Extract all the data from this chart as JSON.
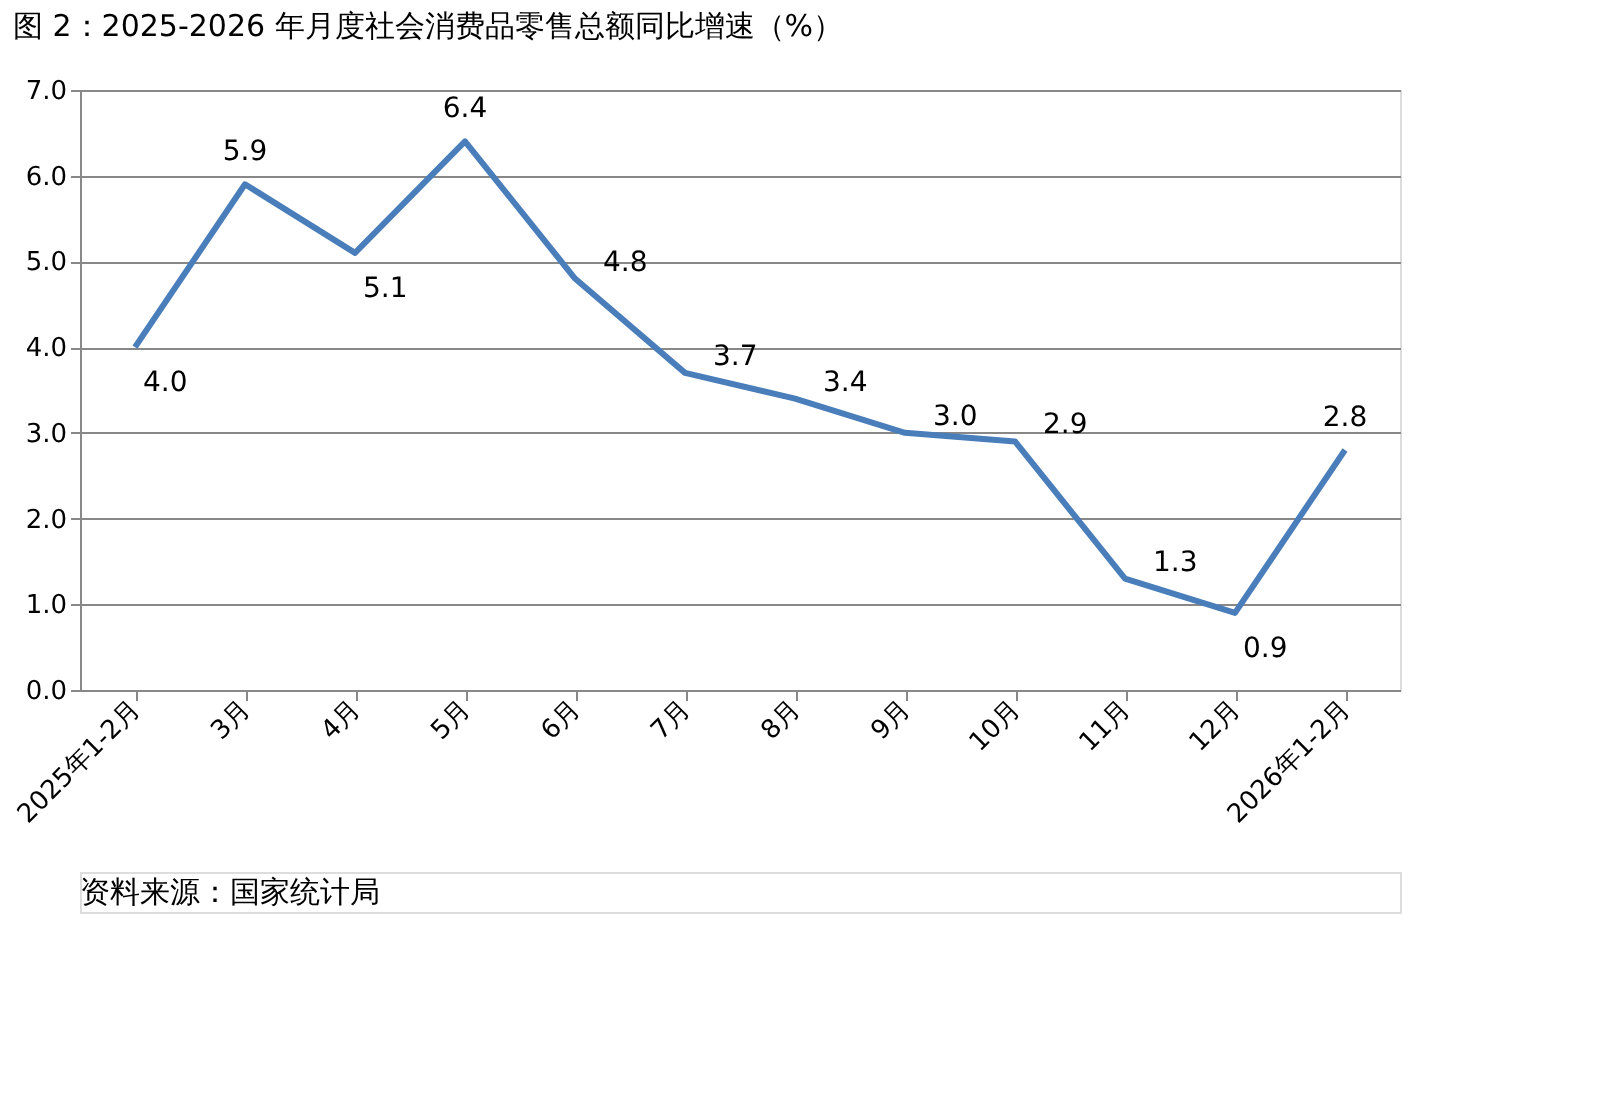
{
  "chart_data": {
    "type": "line",
    "title": "图 2：2025-2026 年月度社会消费品零售总额同比增速（%）",
    "categories": [
      "2025年1-2月",
      "3月",
      "4月",
      "5月",
      "6月",
      "7月",
      "8月",
      "9月",
      "10月",
      "11月",
      "12月",
      "2026年1-2月"
    ],
    "series": [
      {
        "color": "#4a7ebb",
        "values": [
          4.0,
          5.9,
          5.1,
          6.4,
          4.8,
          3.7,
          3.4,
          3.0,
          2.9,
          1.3,
          0.9,
          2.8
        ],
        "value_labels": [
          "4.0",
          "5.9",
          "5.1",
          "6.4",
          "4.8",
          "3.7",
          "3.4",
          "3.0",
          "2.9",
          "1.3",
          "0.9",
          "2.8"
        ]
      }
    ],
    "ylim": [
      0,
      7
    ],
    "yticks": [
      {
        "value": 0,
        "label": "0.0"
      },
      {
        "value": 1,
        "label": "1.0"
      },
      {
        "value": 2,
        "label": "2.0"
      },
      {
        "value": 3,
        "label": "3.0"
      },
      {
        "value": 4,
        "label": "4.0"
      },
      {
        "value": 5,
        "label": "5.0"
      },
      {
        "value": 6,
        "label": "6.0"
      },
      {
        "value": 7,
        "label": "7.0"
      }
    ],
    "grid": "y",
    "legend": false,
    "marker": "none",
    "line_style": "solid",
    "annotations": [
      "资料来源：国家统计局"
    ]
  }
}
